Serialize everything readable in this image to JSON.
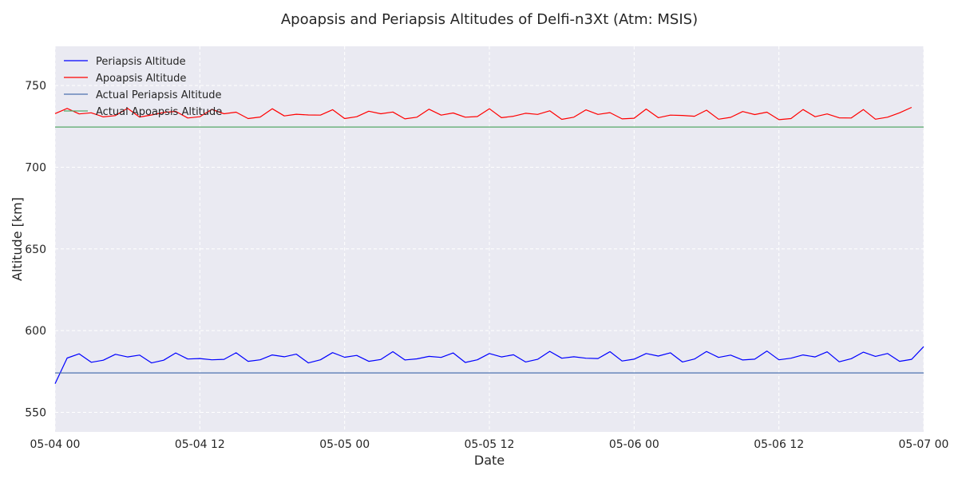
{
  "chart_data": {
    "type": "line",
    "title": "Apoapsis and Periapsis Altitudes of Delfi-n3Xt (Atm: MSIS)",
    "xlabel": "Date",
    "ylabel": "Altitude [km]",
    "xlim": [
      "2024-05-04T00:00",
      "2024-05-07T00:00"
    ],
    "ylim": [
      538,
      774
    ],
    "x_ticks": [
      {
        "value": "2024-05-04T00:00",
        "label": "05-04 00"
      },
      {
        "value": "2024-05-04T12:00",
        "label": "05-04 12"
      },
      {
        "value": "2024-05-05T00:00",
        "label": "05-05 00"
      },
      {
        "value": "2024-05-05T12:00",
        "label": "05-05 12"
      },
      {
        "value": "2024-05-06T00:00",
        "label": "05-06 00"
      },
      {
        "value": "2024-05-06T12:00",
        "label": "05-06 12"
      },
      {
        "value": "2024-05-07T00:00",
        "label": "05-07 00"
      }
    ],
    "y_ticks": [
      550,
      600,
      650,
      700,
      750
    ],
    "grid": true,
    "legend_position": "top-left",
    "x_start": "2024-05-04T00:00",
    "x_step_minutes": 60,
    "series": [
      {
        "name": "Periapsis Altitude",
        "color": "#0000ff",
        "values": [
          567.5,
          583.2,
          585.8,
          580.6,
          581.9,
          585.5,
          583.9,
          585.0,
          580.2,
          581.9,
          586.3,
          582.6,
          582.9,
          582.1,
          582.4,
          586.4,
          581.2,
          582.1,
          585.1,
          584.0,
          585.6,
          580.2,
          582.1,
          586.5,
          583.7,
          584.8,
          581.2,
          582.3,
          587.1,
          582.0,
          582.7,
          584.2,
          583.6,
          586.3,
          580.5,
          582.1,
          586.0,
          583.9,
          585.2,
          580.8,
          582.4,
          587.3,
          583.1,
          584.0,
          583.1,
          582.9,
          587.1,
          581.4,
          582.5,
          586.0,
          584.4,
          586.4,
          580.8,
          582.6,
          587.2,
          583.6,
          585.0,
          582.0,
          582.5,
          587.5,
          582.1,
          583.1,
          585.1,
          583.9,
          587.0,
          580.9,
          582.8,
          586.8,
          584.2,
          586.0,
          581.2,
          582.4,
          590.2
        ]
      },
      {
        "name": "Apoapsis Altitude",
        "color": "#ff0000",
        "values": [
          732.8,
          736.0,
          732.6,
          733.3,
          730.8,
          731.6,
          736.1,
          730.7,
          732.0,
          733.5,
          734.2,
          730.1,
          730.9,
          735.4,
          732.7,
          733.7,
          729.8,
          730.7,
          735.8,
          731.4,
          732.4,
          732.0,
          731.9,
          735.2,
          729.8,
          730.9,
          734.3,
          732.7,
          733.8,
          729.6,
          730.6,
          735.5,
          731.9,
          733.2,
          730.6,
          731.0,
          735.8,
          730.3,
          731.2,
          733.0,
          732.3,
          734.5,
          729.3,
          730.6,
          735.1,
          732.3,
          733.4,
          729.6,
          730.0,
          735.6,
          730.3,
          731.9,
          731.7,
          731.2,
          734.9,
          729.4,
          730.5,
          734.1,
          732.2,
          733.7,
          729.1,
          729.8,
          735.3,
          730.9,
          732.6,
          730.2,
          730.1,
          735.3,
          729.4,
          730.6,
          733.3,
          736.6
        ]
      },
      {
        "name": "Actual Periapsis Altitude",
        "color": "#4c72b0",
        "constant": 574.1
      },
      {
        "name": "Actual Apoapsis Altitude",
        "color": "#55a868",
        "constant": 724.6
      }
    ]
  }
}
